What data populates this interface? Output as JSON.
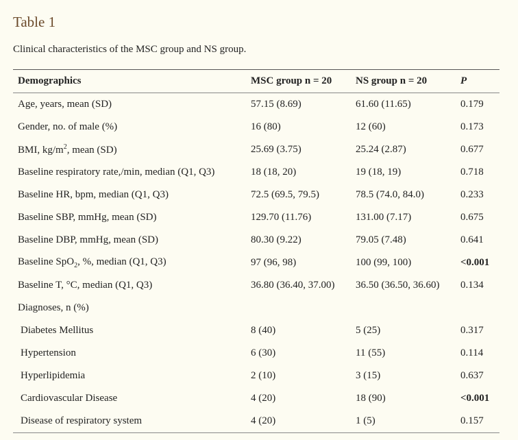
{
  "title": "Table 1",
  "caption": "Clinical characteristics of the MSC group and NS group.",
  "table": {
    "header": [
      "Demographics",
      "MSC group n = 20",
      "NS group n = 20",
      {
        "text": "P",
        "italic": true
      }
    ],
    "rows": [
      {
        "cells": [
          "Age, years, mean (SD)",
          "57.15 (8.69)",
          "61.60 (11.65)",
          "0.179"
        ]
      },
      {
        "cells": [
          "Gender, no. of male (%)",
          "16 (80)",
          "12 (60)",
          "0.173"
        ]
      },
      {
        "cells": [
          {
            "parts": [
              {
                "text": "BMI, kg/m"
              },
              {
                "sup": "2"
              },
              {
                "text": ", mean (SD)"
              }
            ]
          },
          "25.69 (3.75)",
          "25.24 (2.87)",
          "0.677"
        ]
      },
      {
        "cells": [
          "Baseline respiratory rate,/min, median (Q1, Q3)",
          "18 (18, 20)",
          "19 (18, 19)",
          "0.718"
        ]
      },
      {
        "cells": [
          "Baseline HR, bpm, median (Q1, Q3)",
          "72.5 (69.5, 79.5)",
          "78.5 (74.0, 84.0)",
          "0.233"
        ]
      },
      {
        "cells": [
          "Baseline SBP, mmHg, mean (SD)",
          "129.70 (11.76)",
          "131.00 (7.17)",
          "0.675"
        ]
      },
      {
        "cells": [
          "Baseline DBP, mmHg, mean (SD)",
          "80.30 (9.22)",
          "79.05 (7.48)",
          "0.641"
        ]
      },
      {
        "cells": [
          {
            "parts": [
              {
                "text": "Baseline SpO"
              },
              {
                "sub": "2"
              },
              {
                "text": ", %, median (Q1, Q3)"
              }
            ]
          },
          "97 (96, 98)",
          "100 (99, 100)",
          {
            "text": "<0.001",
            "bold": true
          }
        ]
      },
      {
        "cells": [
          "Baseline T, °C, median (Q1, Q3)",
          "36.80 (36.40, 37.00)",
          "36.50 (36.50, 36.60)",
          "0.134"
        ]
      },
      {
        "cells": [
          "Diagnoses, n (%)"
        ]
      },
      {
        "indent": true,
        "cells": [
          "Diabetes Mellitus",
          "8 (40)",
          "5 (25)",
          "0.317"
        ]
      },
      {
        "indent": true,
        "cells": [
          "Hypertension",
          "6 (30)",
          "11 (55)",
          "0.114"
        ]
      },
      {
        "indent": true,
        "cells": [
          "Hyperlipidemia",
          "2 (10)",
          "3 (15)",
          "0.637"
        ]
      },
      {
        "indent": true,
        "cells": [
          "Cardiovascular Disease",
          "4 (20)",
          "18 (90)",
          {
            "text": "<0.001",
            "bold": true
          }
        ]
      },
      {
        "indent": true,
        "cells": [
          "Disease of respiratory system",
          "4 (20)",
          "1 (5)",
          "0.157"
        ]
      }
    ]
  }
}
